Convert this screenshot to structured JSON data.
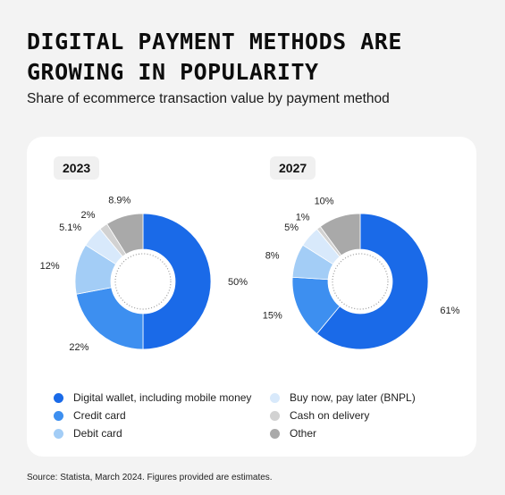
{
  "header": {
    "title": "DIGITAL PAYMENT METHODS ARE GROWING IN POPULARITY",
    "subtitle": "Share of ecommerce transaction value by payment method"
  },
  "source": "Source: Statista, March 2024. Figures provided are estimates.",
  "colors": {
    "digital_wallet": "#1a6ae8",
    "credit_card": "#3d8ff0",
    "debit_card": "#a3cdf6",
    "bnpl": "#d8e9fb",
    "cash_on_delivery": "#d2d2d2",
    "other": "#a9a9a9"
  },
  "legend": [
    {
      "label": "Digital wallet, including mobile money",
      "color": "#1a6ae8"
    },
    {
      "label": "Credit card",
      "color": "#3d8ff0"
    },
    {
      "label": "Debit card",
      "color": "#a3cdf6"
    },
    {
      "label": "Buy now, pay later (BNPL)",
      "color": "#d8e9fb"
    },
    {
      "label": "Cash on delivery",
      "color": "#d2d2d2"
    },
    {
      "label": "Other",
      "color": "#a9a9a9"
    }
  ],
  "chart_data": [
    {
      "type": "pie",
      "style": "donut",
      "title": "2023",
      "categories": [
        "Digital wallet, including mobile money",
        "Credit card",
        "Debit card",
        "Buy now, pay later (BNPL)",
        "Cash on delivery",
        "Other"
      ],
      "values": [
        50,
        22,
        12,
        5.1,
        2,
        8.9
      ],
      "labels": [
        "50%",
        "22%",
        "12%",
        "5.1%",
        "2%",
        "8.9%"
      ]
    },
    {
      "type": "pie",
      "style": "donut",
      "title": "2027",
      "categories": [
        "Digital wallet, including mobile money",
        "Credit card",
        "Debit card",
        "Buy now, pay later (BNPL)",
        "Cash on delivery",
        "Other"
      ],
      "values": [
        61,
        15,
        8,
        5,
        1,
        10
      ],
      "labels": [
        "61%",
        "15%",
        "8%",
        "5%",
        "1%",
        "10%"
      ]
    }
  ]
}
